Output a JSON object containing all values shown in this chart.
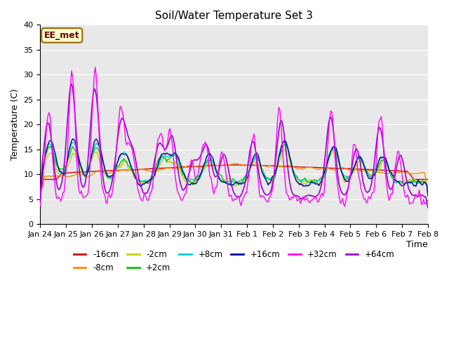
{
  "title": "Soil/Water Temperature Set 3",
  "xlabel": "Time",
  "ylabel": "Temperature (C)",
  "ylim": [
    0,
    40
  ],
  "annotation": "EE_met",
  "bg_color": "#e8e8e8",
  "series_colors": {
    "-16cm": "#cc0000",
    "-8cm": "#ff8800",
    "-2cm": "#cccc00",
    "+2cm": "#00cc00",
    "+8cm": "#00cccc",
    "+16cm": "#000099",
    "+32cm": "#ff00ff",
    "+64cm": "#9900cc"
  },
  "xtick_labels": [
    "Jan 24",
    "Jan 25",
    "Jan 26",
    "Jan 27",
    "Jan 28",
    "Jan 29",
    "Jan 30",
    "Jan 31",
    "Feb 1",
    "Feb 2",
    "Feb 3",
    "Feb 4",
    "Feb 5",
    "Feb 6",
    "Feb 7",
    "Feb 8"
  ],
  "figsize": [
    6.4,
    4.8
  ],
  "dpi": 100
}
